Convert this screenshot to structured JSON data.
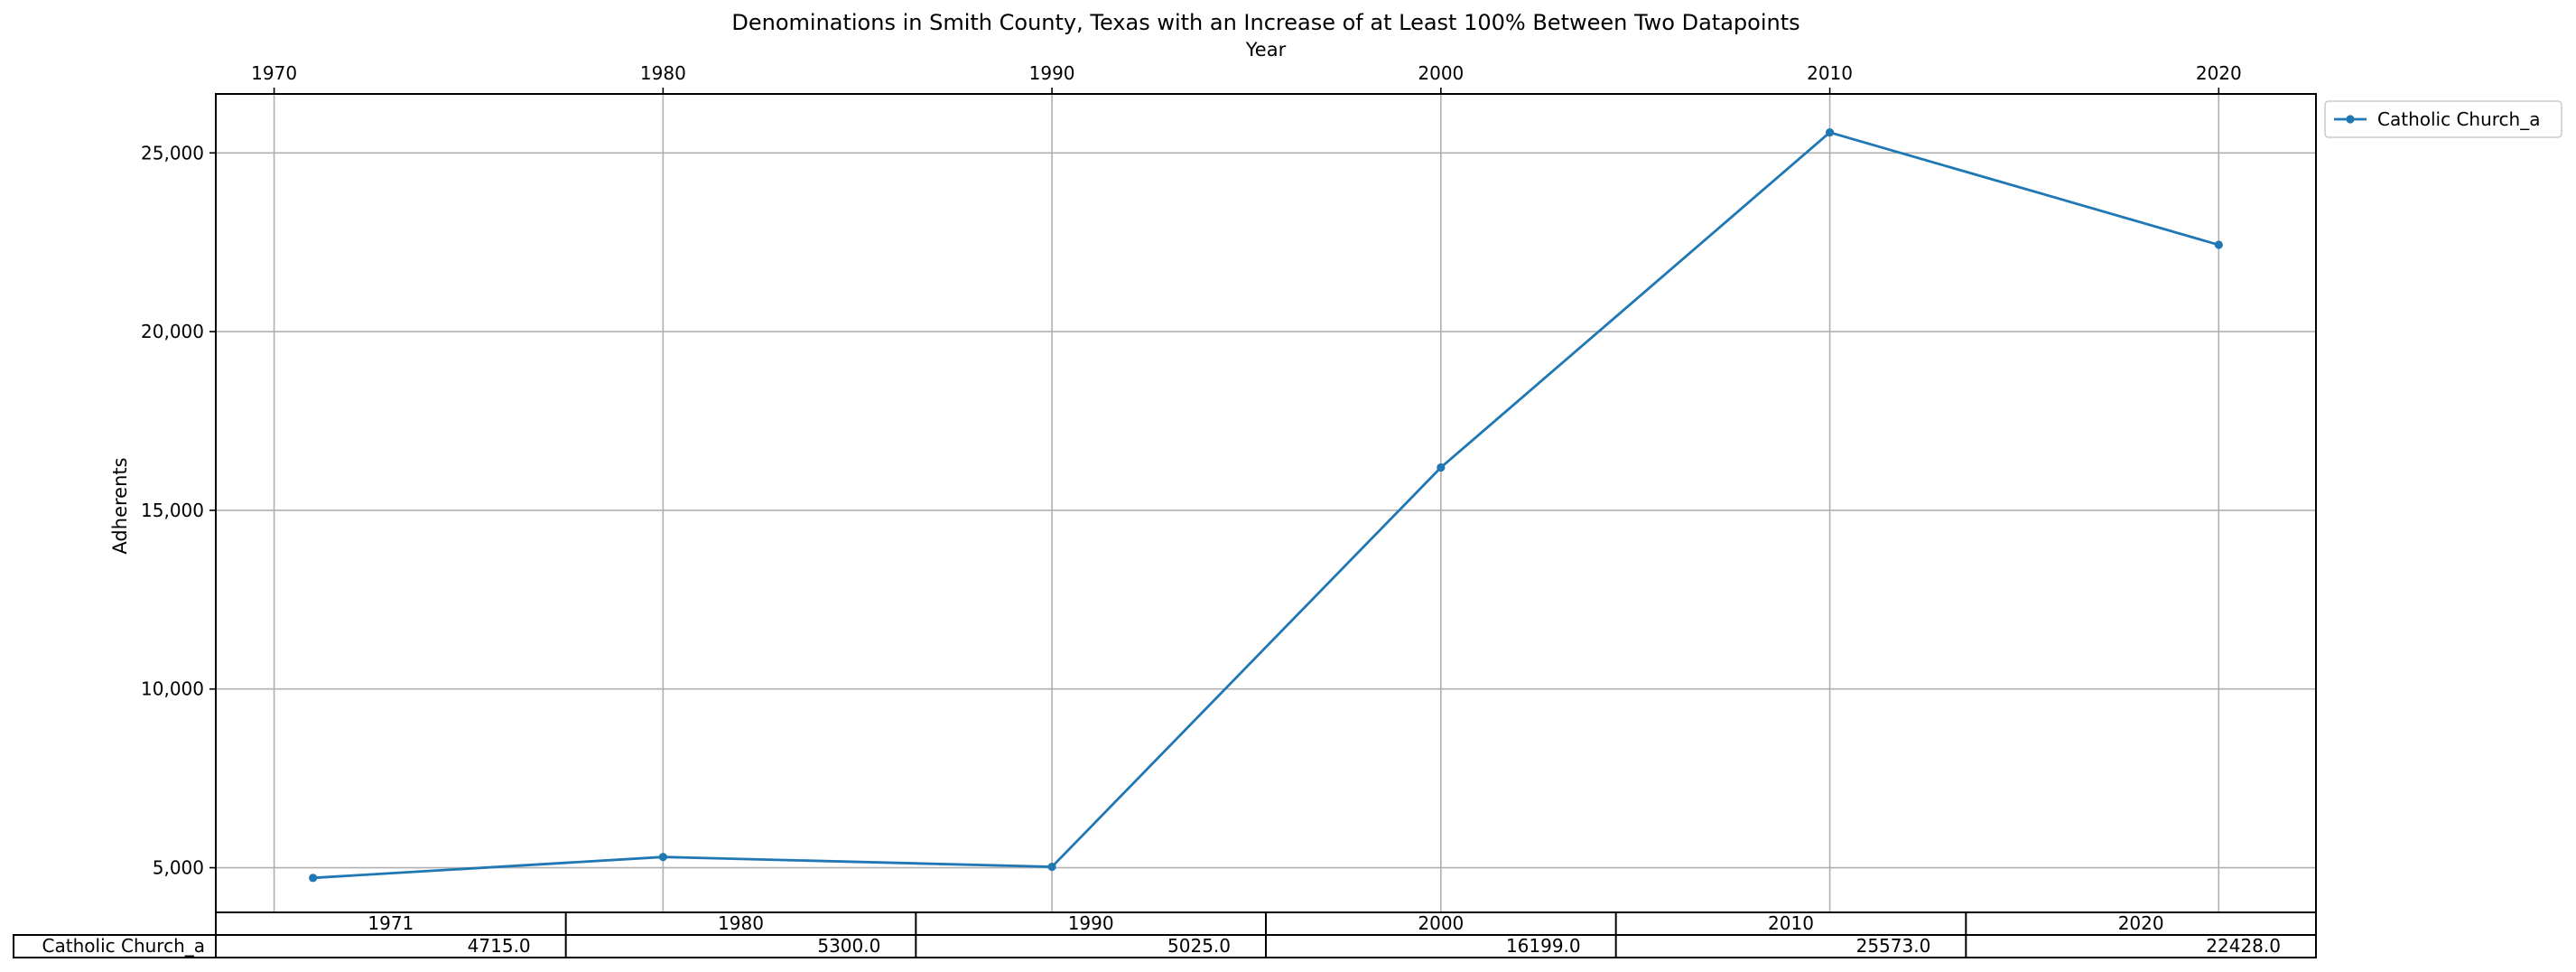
{
  "chart_data": {
    "type": "line",
    "title": "Denominations in Smith County, Texas with an Increase of at Least 100% Between Two Datapoints",
    "xlabel": "Year",
    "ylabel": "Adherents",
    "x_axis_position": "top",
    "xlim": [
      1968.5,
      2022.5
    ],
    "ylim": [
      3750,
      26650
    ],
    "x_ticks": [
      1970,
      1980,
      1990,
      2000,
      2010,
      2020
    ],
    "x_tick_labels": [
      "1970",
      "1980",
      "1990",
      "2000",
      "2010",
      "2020"
    ],
    "y_ticks": [
      5000,
      10000,
      15000,
      20000,
      25000
    ],
    "y_tick_labels": [
      "5,000",
      "10,000",
      "15,000",
      "20,000",
      "25,000"
    ],
    "grid": true,
    "legend_position": "outside-top-right",
    "series": [
      {
        "name": "Catholic Church_a",
        "color": "#1f77b4",
        "marker": "dot",
        "x": [
          1971,
          1980,
          1990,
          2000,
          2010,
          2020
        ],
        "values": [
          4715,
          5300,
          5025,
          16199,
          25573,
          22428
        ]
      }
    ],
    "table": {
      "col_labels": [
        "1971",
        "1980",
        "1990",
        "2000",
        "2010",
        "2020"
      ],
      "rows": [
        {
          "label": "Catholic Church_a",
          "cells": [
            "4715.0",
            "5300.0",
            "5025.0",
            "16199.0",
            "25573.0",
            "22428.0"
          ]
        }
      ]
    }
  }
}
